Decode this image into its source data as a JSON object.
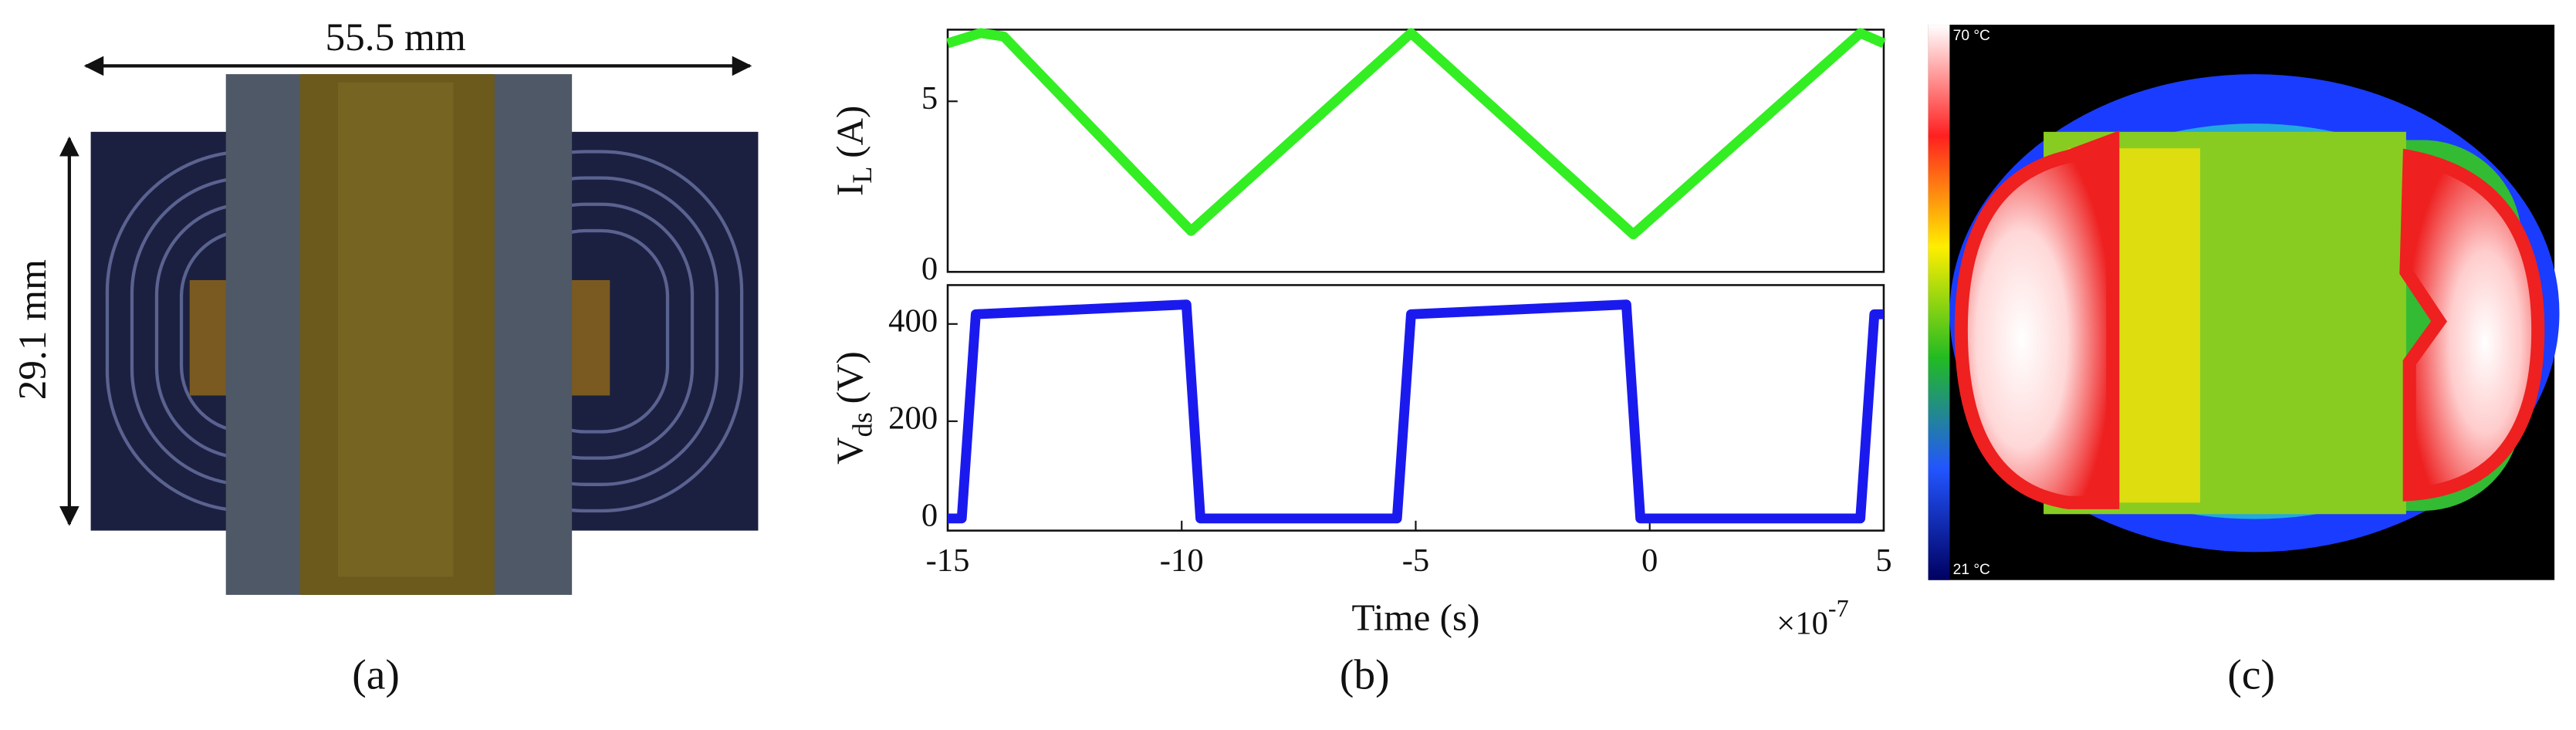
{
  "panels": {
    "a": {
      "label": "(a)",
      "width_label": "55.5 mm",
      "height_label": "29.1 mm"
    },
    "b": {
      "label": "(b)"
    },
    "c": {
      "label": "(c)",
      "max_label": "70 °C",
      "min_label": "21 °C"
    }
  },
  "chart_data": [
    {
      "type": "line",
      "ylabel": "I",
      "ylabel_sub": "L",
      "ylabel_unit": "(A)",
      "xlim": [
        -15,
        5
      ],
      "ylim": [
        0,
        7.1
      ],
      "yticks": [
        0,
        5
      ],
      "series": [
        {
          "name": "I_L",
          "color": "#33ee22",
          "x": [
            -15,
            -14.3,
            -13.8,
            -9.8,
            -5.1,
            -0.35,
            4.5,
            5
          ],
          "values": [
            6.7,
            7.0,
            6.9,
            1.2,
            7.0,
            1.1,
            7.0,
            6.7
          ]
        }
      ]
    },
    {
      "type": "line",
      "ylabel": "V",
      "ylabel_sub": "ds",
      "ylabel_unit": "(V)",
      "xlabel": "Time (s)",
      "x_multiplier": "×10",
      "x_exponent": "-7",
      "xlim": [
        -15,
        5
      ],
      "ylim": [
        -25,
        480
      ],
      "yticks": [
        0,
        200,
        400
      ],
      "xticks": [
        -15,
        -10,
        -5,
        0,
        5
      ],
      "series": [
        {
          "name": "V_ds",
          "color": "#1a1aee",
          "x": [
            -15,
            -14.7,
            -14.4,
            -9.9,
            -9.6,
            -5.4,
            -5.1,
            -0.5,
            -0.2,
            4.5,
            4.8,
            5
          ],
          "values": [
            0,
            0,
            420,
            440,
            0,
            0,
            420,
            440,
            0,
            0,
            420,
            420
          ]
        }
      ]
    }
  ]
}
